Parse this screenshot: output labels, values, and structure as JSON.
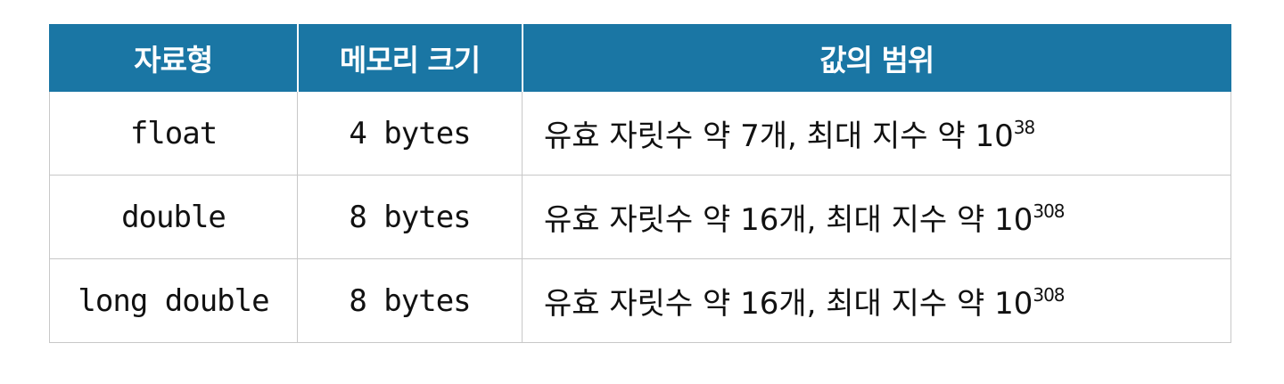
{
  "table": {
    "headers": [
      "자료형",
      "메모리 크기",
      "값의 범위"
    ],
    "rows": [
      {
        "type": "float",
        "size": "4 bytes",
        "range_text": "유효 자릿수 약 7개, 최대 지수 약 10",
        "range_exp": "38"
      },
      {
        "type": "double",
        "size": "8 bytes",
        "range_text": "유효 자릿수 약 16개, 최대 지수 약 10",
        "range_exp": "308"
      },
      {
        "type": "long double",
        "size": "8 bytes",
        "range_text": "유효 자릿수 약 16개, 최대 지수 약 10",
        "range_exp": "308"
      }
    ]
  },
  "colors": {
    "header_bg": "#1a76a4",
    "header_text": "#ffffff",
    "border": "#c8c8c8"
  }
}
